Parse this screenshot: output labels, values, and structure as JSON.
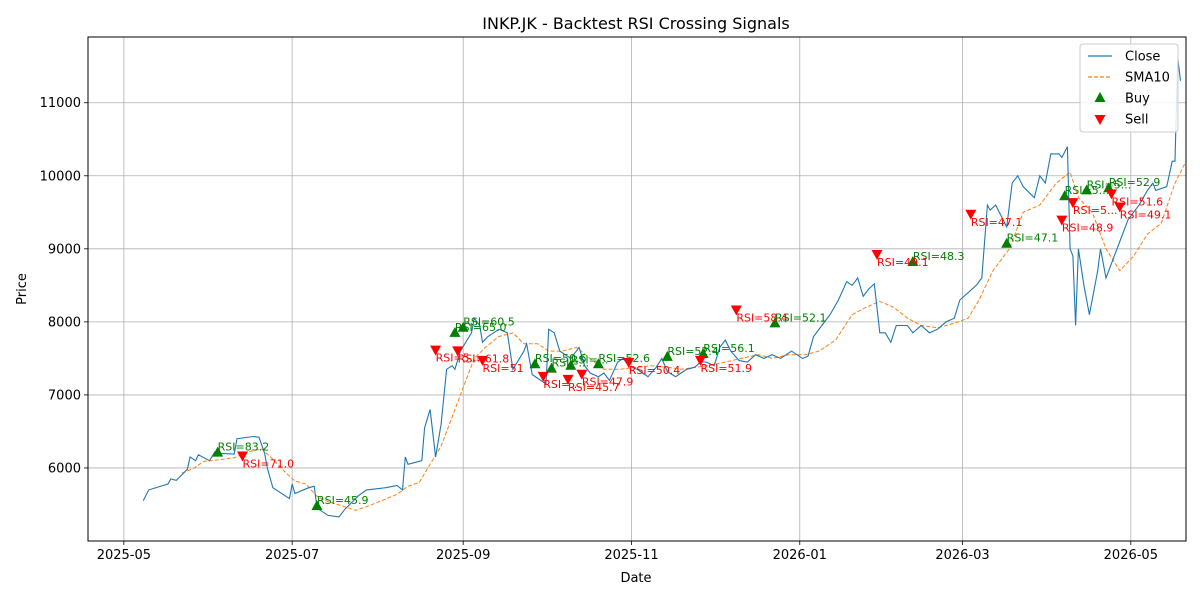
{
  "chart_data": {
    "type": "line",
    "title": "INKP.JK - Backtest RSI Crossing Signals",
    "xlabel": "Date",
    "ylabel": "Price",
    "xlim": [
      "2025-04-18",
      "2026-05-21"
    ],
    "ylim": [
      5000,
      11900
    ],
    "grid": true,
    "legend_position": "top-right",
    "x_ticks": [
      "2025-05",
      "2025-07",
      "2025-09",
      "2025-11",
      "2026-01",
      "2026-03",
      "2026-05"
    ],
    "y_ticks": [
      6000,
      7000,
      8000,
      9000,
      10000,
      11000
    ],
    "colors": {
      "close": "#1f77b4",
      "sma": "#ff7f0e",
      "buy": "#008000",
      "sell": "#ff0000",
      "grid": "#b0b0b0"
    },
    "series": [
      {
        "name": "Close",
        "style": "solid",
        "points": [
          [
            "2025-05-08",
            5550
          ],
          [
            "2025-05-10",
            5700
          ],
          [
            "2025-05-17",
            5780
          ],
          [
            "2025-05-18",
            5850
          ],
          [
            "2025-05-20",
            5830
          ],
          [
            "2025-05-24",
            5980
          ],
          [
            "2025-05-25",
            6150
          ],
          [
            "2025-05-27",
            6100
          ],
          [
            "2025-05-28",
            6180
          ],
          [
            "2025-06-01",
            6100
          ],
          [
            "2025-06-03",
            6220
          ],
          [
            "2025-06-04",
            6200
          ],
          [
            "2025-06-10",
            6190
          ],
          [
            "2025-06-11",
            6400
          ],
          [
            "2025-06-17",
            6430
          ],
          [
            "2025-06-19",
            6420
          ],
          [
            "2025-06-21",
            6200
          ],
          [
            "2025-06-22",
            6000
          ],
          [
            "2025-06-24",
            5730
          ],
          [
            "2025-06-30",
            5580
          ],
          [
            "2025-07-01",
            5780
          ],
          [
            "2025-07-02",
            5650
          ],
          [
            "2025-07-07",
            5730
          ],
          [
            "2025-07-09",
            5750
          ],
          [
            "2025-07-10",
            5450
          ],
          [
            "2025-07-14",
            5350
          ],
          [
            "2025-07-18",
            5330
          ],
          [
            "2025-07-20",
            5430
          ],
          [
            "2025-07-25",
            5620
          ],
          [
            "2025-07-28",
            5700
          ],
          [
            "2025-08-04",
            5730
          ],
          [
            "2025-08-08",
            5760
          ],
          [
            "2025-08-10",
            5700
          ],
          [
            "2025-08-11",
            6150
          ],
          [
            "2025-08-12",
            6050
          ],
          [
            "2025-08-17",
            6100
          ],
          [
            "2025-08-18",
            6550
          ],
          [
            "2025-08-20",
            6800
          ],
          [
            "2025-08-22",
            6150
          ],
          [
            "2025-08-24",
            6600
          ],
          [
            "2025-08-26",
            7350
          ],
          [
            "2025-08-28",
            7400
          ],
          [
            "2025-08-29",
            7350
          ],
          [
            "2025-08-31",
            7600
          ],
          [
            "2025-09-04",
            7850
          ],
          [
            "2025-09-05",
            8050
          ],
          [
            "2025-09-07",
            7950
          ],
          [
            "2025-09-08",
            7720
          ],
          [
            "2025-09-10",
            7800
          ],
          [
            "2025-09-14",
            7900
          ],
          [
            "2025-09-17",
            7850
          ],
          [
            "2025-09-19",
            7350
          ],
          [
            "2025-09-23",
            7600
          ],
          [
            "2025-09-24",
            7700
          ],
          [
            "2025-09-26",
            7280
          ],
          [
            "2025-10-01",
            7150
          ],
          [
            "2025-10-02",
            7900
          ],
          [
            "2025-10-04",
            7850
          ],
          [
            "2025-10-06",
            7600
          ],
          [
            "2025-10-08",
            7550
          ],
          [
            "2025-10-10",
            7500
          ],
          [
            "2025-10-13",
            7650
          ],
          [
            "2025-10-15",
            7400
          ],
          [
            "2025-10-17",
            7300
          ],
          [
            "2025-10-20",
            7250
          ],
          [
            "2025-10-22",
            7300
          ],
          [
            "2025-10-24",
            7200
          ],
          [
            "2025-10-27",
            7450
          ],
          [
            "2025-10-29",
            7500
          ],
          [
            "2025-10-31",
            7400
          ],
          [
            "2025-11-03",
            7350
          ],
          [
            "2025-11-05",
            7300
          ],
          [
            "2025-11-07",
            7250
          ],
          [
            "2025-11-10",
            7380
          ],
          [
            "2025-11-12",
            7500
          ],
          [
            "2025-11-14",
            7320
          ],
          [
            "2025-11-17",
            7250
          ],
          [
            "2025-11-19",
            7300
          ],
          [
            "2025-11-21",
            7350
          ],
          [
            "2025-11-24",
            7380
          ],
          [
            "2025-11-26",
            7450
          ],
          [
            "2025-11-28",
            7450
          ],
          [
            "2025-12-01",
            7400
          ],
          [
            "2025-12-03",
            7650
          ],
          [
            "2025-12-05",
            7750
          ],
          [
            "2025-12-07",
            7600
          ],
          [
            "2025-12-10",
            7470
          ],
          [
            "2025-12-13",
            7450
          ],
          [
            "2025-12-16",
            7550
          ],
          [
            "2025-12-19",
            7500
          ],
          [
            "2025-12-22",
            7550
          ],
          [
            "2025-12-25",
            7500
          ],
          [
            "2025-12-29",
            7600
          ],
          [
            "2026-01-02",
            7500
          ],
          [
            "2026-01-04",
            7530
          ],
          [
            "2026-01-06",
            7800
          ],
          [
            "2026-01-09",
            7950
          ],
          [
            "2026-01-12",
            8100
          ],
          [
            "2026-01-15",
            8300
          ],
          [
            "2026-01-18",
            8550
          ],
          [
            "2026-01-20",
            8500
          ],
          [
            "2026-01-22",
            8600
          ],
          [
            "2026-01-24",
            8350
          ],
          [
            "2026-01-26",
            8450
          ],
          [
            "2026-01-28",
            8520
          ],
          [
            "2026-01-30",
            7850
          ],
          [
            "2026-02-01",
            7850
          ],
          [
            "2026-02-03",
            7720
          ],
          [
            "2026-02-05",
            7950
          ],
          [
            "2026-02-09",
            7950
          ],
          [
            "2026-02-11",
            7850
          ],
          [
            "2026-02-14",
            7950
          ],
          [
            "2026-02-17",
            7850
          ],
          [
            "2026-02-20",
            7900
          ],
          [
            "2026-02-23",
            8000
          ],
          [
            "2026-02-26",
            8050
          ],
          [
            "2026-02-28",
            8300
          ],
          [
            "2026-03-03",
            8400
          ],
          [
            "2026-03-06",
            8500
          ],
          [
            "2026-03-08",
            8600
          ],
          [
            "2026-03-10",
            9600
          ],
          [
            "2026-03-11",
            9530
          ],
          [
            "2026-03-13",
            9600
          ],
          [
            "2026-03-15",
            9450
          ],
          [
            "2026-03-17",
            9300
          ],
          [
            "2026-03-19",
            9900
          ],
          [
            "2026-03-21",
            10000
          ],
          [
            "2026-03-23",
            9850
          ],
          [
            "2026-03-27",
            9700
          ],
          [
            "2026-03-29",
            10000
          ],
          [
            "2026-03-31",
            9900
          ],
          [
            "2026-04-02",
            10300
          ],
          [
            "2026-04-05",
            10300
          ],
          [
            "2026-04-06",
            10250
          ],
          [
            "2026-04-08",
            10400
          ],
          [
            "2026-04-09",
            9000
          ],
          [
            "2026-04-10",
            8900
          ],
          [
            "2026-04-11",
            7950
          ],
          [
            "2026-04-12",
            9000
          ],
          [
            "2026-04-14",
            8500
          ],
          [
            "2026-04-16",
            8100
          ],
          [
            "2026-04-19",
            8700
          ],
          [
            "2026-04-20",
            9000
          ],
          [
            "2026-04-22",
            8600
          ],
          [
            "2026-04-24",
            8800
          ],
          [
            "2026-04-27",
            9100
          ],
          [
            "2026-04-30",
            9400
          ],
          [
            "2026-05-04",
            9600
          ],
          [
            "2026-05-07",
            9800
          ],
          [
            "2026-05-09",
            9900
          ],
          [
            "2026-05-10",
            9800
          ],
          [
            "2026-05-14",
            9850
          ],
          [
            "2026-05-16",
            10200
          ],
          [
            "2026-05-17",
            10200
          ],
          [
            "2026-05-18",
            11620
          ],
          [
            "2026-05-19",
            11300
          ]
        ]
      },
      {
        "name": "SMA10",
        "style": "dashed",
        "points": [
          [
            "2025-05-22",
            5930
          ],
          [
            "2025-05-26",
            5990
          ],
          [
            "2025-05-30",
            6090
          ],
          [
            "2025-06-04",
            6110
          ],
          [
            "2025-06-10",
            6140
          ],
          [
            "2025-06-16",
            6230
          ],
          [
            "2025-06-20",
            6260
          ],
          [
            "2025-06-24",
            6120
          ],
          [
            "2025-06-28",
            5960
          ],
          [
            "2025-07-02",
            5820
          ],
          [
            "2025-07-06",
            5780
          ],
          [
            "2025-07-10",
            5610
          ],
          [
            "2025-07-14",
            5540
          ],
          [
            "2025-07-20",
            5470
          ],
          [
            "2025-07-24",
            5420
          ],
          [
            "2025-07-28",
            5470
          ],
          [
            "2025-08-03",
            5560
          ],
          [
            "2025-08-08",
            5640
          ],
          [
            "2025-08-12",
            5750
          ],
          [
            "2025-08-16",
            5800
          ],
          [
            "2025-08-20",
            6050
          ],
          [
            "2025-08-24",
            6300
          ],
          [
            "2025-08-28",
            6700
          ],
          [
            "2025-09-01",
            7100
          ],
          [
            "2025-09-05",
            7500
          ],
          [
            "2025-09-09",
            7650
          ],
          [
            "2025-09-14",
            7800
          ],
          [
            "2025-09-19",
            7850
          ],
          [
            "2025-09-23",
            7700
          ],
          [
            "2025-09-28",
            7700
          ],
          [
            "2025-10-02",
            7600
          ],
          [
            "2025-10-07",
            7600
          ],
          [
            "2025-10-12",
            7650
          ],
          [
            "2025-10-17",
            7500
          ],
          [
            "2025-10-22",
            7350
          ],
          [
            "2025-10-28",
            7350
          ],
          [
            "2025-11-03",
            7380
          ],
          [
            "2025-11-08",
            7400
          ],
          [
            "2025-11-14",
            7380
          ],
          [
            "2025-11-19",
            7350
          ],
          [
            "2025-11-24",
            7380
          ],
          [
            "2025-11-29",
            7400
          ],
          [
            "2025-12-05",
            7450
          ],
          [
            "2025-12-11",
            7500
          ],
          [
            "2025-12-17",
            7550
          ],
          [
            "2025-12-22",
            7500
          ],
          [
            "2025-12-28",
            7550
          ],
          [
            "2026-01-03",
            7550
          ],
          [
            "2026-01-08",
            7600
          ],
          [
            "2026-01-14",
            7750
          ],
          [
            "2026-01-20",
            8100
          ],
          [
            "2026-01-25",
            8200
          ],
          [
            "2026-01-30",
            8280
          ],
          [
            "2026-02-04",
            8200
          ],
          [
            "2026-02-09",
            8050
          ],
          [
            "2026-02-14",
            7950
          ],
          [
            "2026-02-20",
            7920
          ],
          [
            "2026-02-26",
            7980
          ],
          [
            "2026-03-03",
            8050
          ],
          [
            "2026-03-07",
            8300
          ],
          [
            "2026-03-12",
            8700
          ],
          [
            "2026-03-18",
            9000
          ],
          [
            "2026-03-23",
            9500
          ],
          [
            "2026-03-29",
            9600
          ],
          [
            "2026-04-04",
            9900
          ],
          [
            "2026-04-09",
            10050
          ],
          [
            "2026-04-12",
            9700
          ],
          [
            "2026-04-17",
            9500
          ],
          [
            "2026-04-22",
            9000
          ],
          [
            "2026-04-27",
            8700
          ],
          [
            "2026-05-02",
            8900
          ],
          [
            "2026-05-07",
            9200
          ],
          [
            "2026-05-12",
            9350
          ],
          [
            "2026-05-17",
            9900
          ],
          [
            "2026-05-21",
            10200
          ]
        ]
      }
    ],
    "buy_signals": [
      {
        "x": "2025-06-04",
        "y": 6210,
        "label": "RSI=83.2"
      },
      {
        "x": "2025-07-10",
        "y": 5480,
        "label": "RSI=45.9"
      },
      {
        "x": "2025-08-29",
        "y": 7850,
        "label": "RSI=65.0"
      },
      {
        "x": "2025-09-01",
        "y": 7920,
        "label": "RSI=60.5"
      },
      {
        "x": "2025-09-27",
        "y": 7420,
        "label": "RSI=50.6"
      },
      {
        "x": "2025-10-03",
        "y": 7360,
        "label": "RSI=..."
      },
      {
        "x": "2025-10-10",
        "y": 7400,
        "label": "RSI=..."
      },
      {
        "x": "2025-10-20",
        "y": 7420,
        "label": "RSI=52.6"
      },
      {
        "x": "2025-11-14",
        "y": 7520,
        "label": "RSI=52.4"
      },
      {
        "x": "2025-11-27",
        "y": 7560,
        "label": "RSI=56.1"
      },
      {
        "x": "2025-12-23",
        "y": 7980,
        "label": "RSI=52.1"
      },
      {
        "x": "2026-02-11",
        "y": 8820,
        "label": "RSI=48.3"
      },
      {
        "x": "2026-03-17",
        "y": 9070,
        "label": "RSI=47.1"
      },
      {
        "x": "2026-04-07",
        "y": 9720,
        "label": "RSI=5..."
      },
      {
        "x": "2026-04-15",
        "y": 9800,
        "label": "RSI=5..."
      },
      {
        "x": "2026-04-23",
        "y": 9830,
        "label": "RSI=52.9"
      }
    ],
    "sell_signals": [
      {
        "x": "2025-06-13",
        "y": 6170,
        "label": "RSI=71.0"
      },
      {
        "x": "2025-08-22",
        "y": 7620,
        "label": "RSI=5..."
      },
      {
        "x": "2025-08-30",
        "y": 7610,
        "label": "RSI=61.8"
      },
      {
        "x": "2025-09-08",
        "y": 7480,
        "label": "RSI=51"
      },
      {
        "x": "2025-09-30",
        "y": 7260,
        "label": "RSI=..."
      },
      {
        "x": "2025-10-09",
        "y": 7220,
        "label": "RSI=45.7"
      },
      {
        "x": "2025-10-14",
        "y": 7290,
        "label": "RSI=47.9"
      },
      {
        "x": "2025-10-31",
        "y": 7450,
        "label": "RSI=50.4"
      },
      {
        "x": "2025-11-26",
        "y": 7480,
        "label": "RSI=51.9"
      },
      {
        "x": "2025-12-09",
        "y": 8170,
        "label": "RSI=58.4"
      },
      {
        "x": "2026-01-29",
        "y": 8930,
        "label": "RSI=49.1"
      },
      {
        "x": "2026-03-04",
        "y": 9480,
        "label": "RSI=47.1"
      },
      {
        "x": "2026-04-06",
        "y": 9400,
        "label": "RSI=48.9"
      },
      {
        "x": "2026-04-10",
        "y": 9640,
        "label": "RSI=5..."
      },
      {
        "x": "2026-04-24",
        "y": 9760,
        "label": "RSI=51.6"
      },
      {
        "x": "2026-04-27",
        "y": 9580,
        "label": "RSI=49.1"
      }
    ],
    "legend": [
      {
        "label": "Close",
        "kind": "line"
      },
      {
        "label": "SMA10",
        "kind": "dashed"
      },
      {
        "label": "Buy",
        "kind": "buy"
      },
      {
        "label": "Sell",
        "kind": "sell"
      }
    ]
  }
}
